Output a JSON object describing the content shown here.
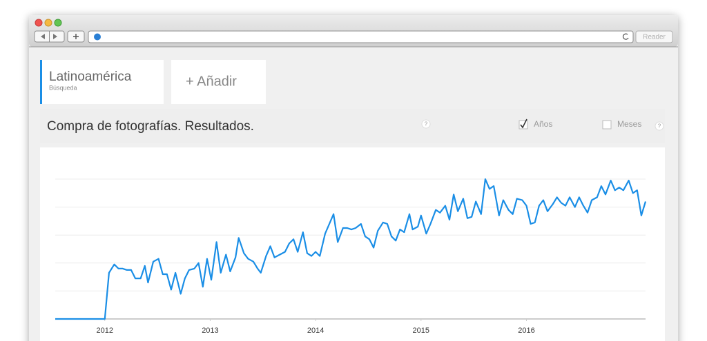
{
  "browser": {
    "reader": "Reader"
  },
  "tabs": [
    {
      "title": "Latinoamérica",
      "subtitle": "Búsqueda"
    },
    {
      "title": "+ Añadir"
    }
  ],
  "heading": "Compra de fotografías. Resultados.",
  "help": [
    "?",
    "?"
  ],
  "options": [
    {
      "label": "Años",
      "checked": true
    },
    {
      "label": "Meses",
      "checked": false
    }
  ],
  "chart_data": {
    "type": "line",
    "x": [
      2011.53,
      2012.0,
      2012.04,
      2012.09,
      2012.13,
      2012.17,
      2012.21,
      2012.25,
      2012.29,
      2012.34,
      2012.38,
      2012.41,
      2012.46,
      2012.51,
      2012.55,
      2012.59,
      2012.63,
      2012.67,
      2012.72,
      2012.76,
      2012.8,
      2012.85,
      2012.89,
      2012.93,
      2012.97,
      2013.01,
      2013.06,
      2013.1,
      2013.15,
      2013.19,
      2013.24,
      2013.27,
      2013.32,
      2013.36,
      2013.41,
      2013.45,
      2013.48,
      2013.53,
      2013.57,
      2013.61,
      2013.66,
      2013.71,
      2013.75,
      2013.79,
      2013.83,
      2013.88,
      2013.92,
      2013.96,
      2014.0,
      2014.04,
      2014.09,
      2014.13,
      2014.17,
      2014.21,
      2014.26,
      2014.3,
      2014.34,
      2014.38,
      2014.43,
      2014.47,
      2014.51,
      2014.55,
      2014.59,
      2014.64,
      2014.68,
      2014.72,
      2014.76,
      2014.8,
      2014.84,
      2014.89,
      2014.92,
      2014.97,
      2015.0,
      2015.05,
      2015.09,
      2015.14,
      2015.18,
      2015.23,
      2015.27,
      2015.31,
      2015.35,
      2015.4,
      2015.44,
      2015.48,
      2015.52,
      2015.57,
      2015.61,
      2015.65,
      2015.69,
      2015.74,
      2015.78,
      2015.83,
      2015.87,
      2015.91,
      2015.96,
      2016.0,
      2016.04,
      2016.08,
      2016.12,
      2016.16,
      2016.2,
      2016.25,
      2016.29,
      2016.33,
      2016.37,
      2016.41,
      2016.46,
      2016.5,
      2016.54,
      2016.58,
      2016.62,
      2016.67,
      2016.71,
      2016.75,
      2016.8,
      2016.84,
      2016.88,
      2016.92,
      2016.97,
      2017.01,
      2017.05,
      2017.09,
      2017.13
    ],
    "series": [
      {
        "name": "Latinoamérica",
        "color": "#1a8ee6",
        "values": [
          0,
          0,
          33,
          39,
          36,
          36,
          35,
          35,
          29,
          29,
          38,
          26,
          41,
          43,
          32,
          32,
          21,
          33,
          18,
          29,
          35,
          36,
          40,
          23,
          43,
          28,
          55,
          33,
          46,
          34,
          44,
          58,
          47,
          43,
          41,
          36,
          33,
          45,
          52,
          44,
          46,
          48,
          54,
          57,
          48,
          62,
          47,
          45,
          48,
          45,
          61,
          68,
          75,
          55,
          65,
          65,
          64,
          65,
          68,
          59,
          57,
          51,
          63,
          69,
          68,
          59,
          56,
          64,
          62,
          75,
          64,
          66,
          74,
          61,
          68,
          78,
          76,
          81,
          71,
          89,
          77,
          86,
          72,
          73,
          84,
          75,
          100,
          93,
          95,
          74,
          85,
          78,
          75,
          86,
          85,
          81,
          68,
          69,
          81,
          85,
          77,
          82,
          87,
          83,
          81,
          87,
          80,
          87,
          81,
          76,
          85,
          87,
          95,
          89,
          99,
          92,
          94,
          92,
          99,
          90,
          92,
          74,
          84
        ]
      }
    ],
    "xlim": [
      2011.53,
      2017.13
    ],
    "xticks": [
      2012,
      2013,
      2014,
      2015,
      2016
    ],
    "ylim": [
      0,
      100
    ],
    "yticks": [
      0,
      20,
      40,
      60,
      80,
      100
    ],
    "grid": true
  }
}
